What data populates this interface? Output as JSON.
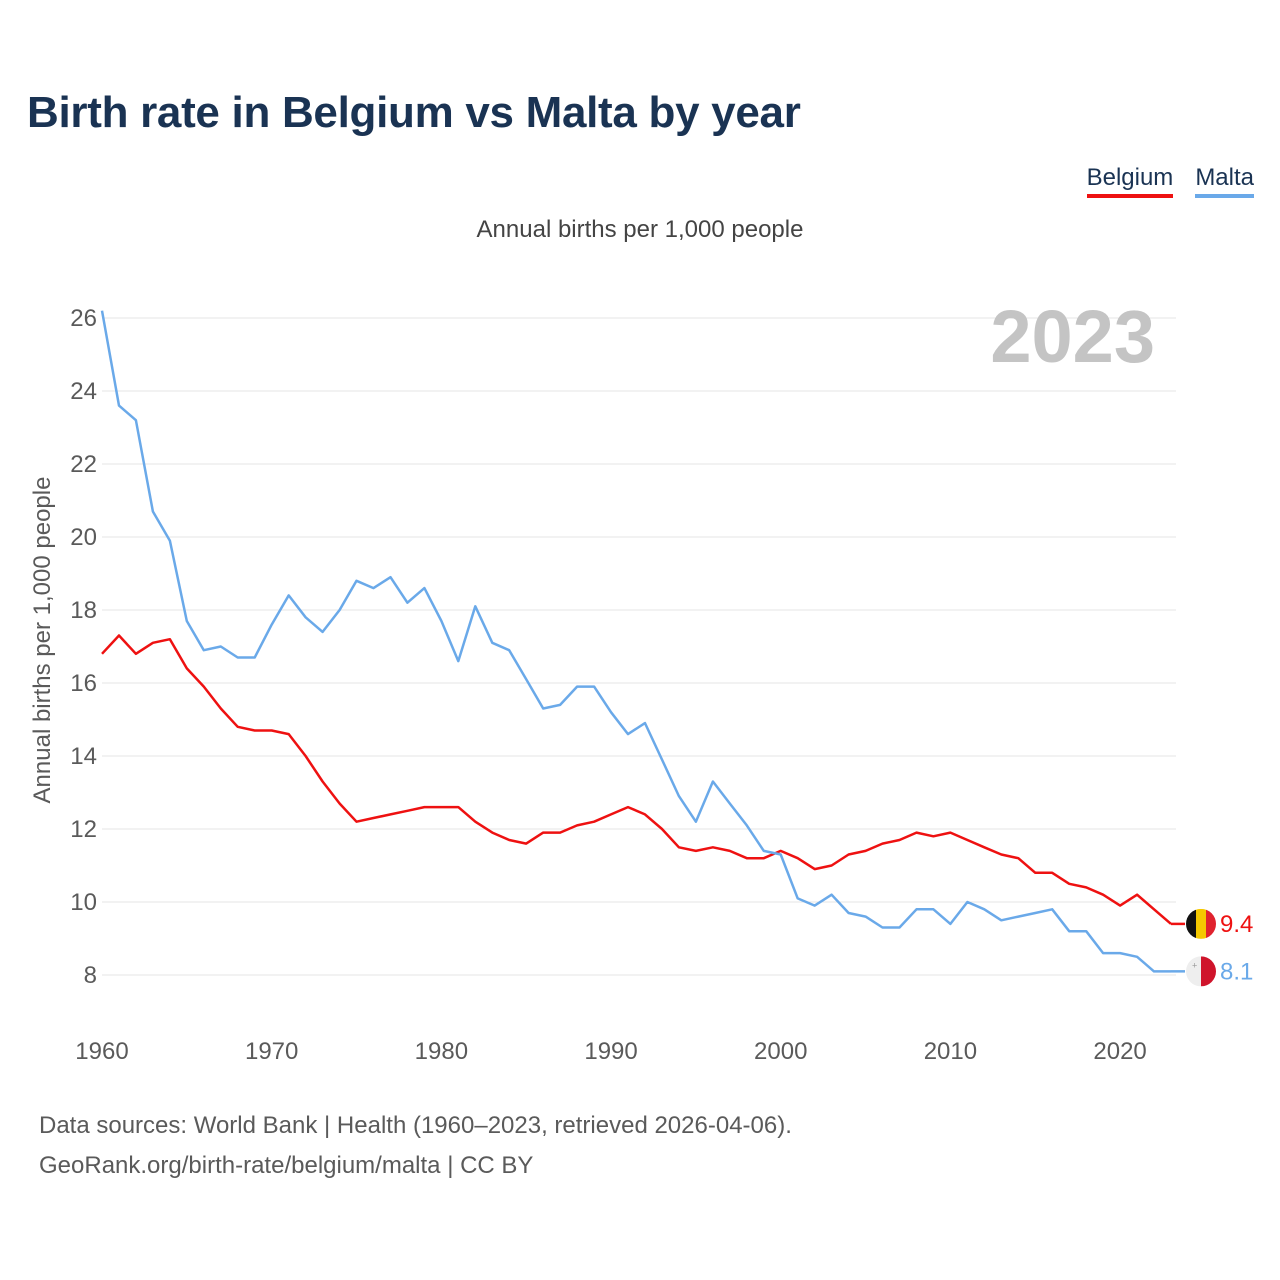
{
  "title": "Birth rate in Belgium vs Malta by year",
  "subtitle": "Annual births per 1,000 people",
  "year_watermark": "2023",
  "legend": [
    {
      "name": "Belgium",
      "color": "#ee1111"
    },
    {
      "name": "Malta",
      "color": "#6aa9e9"
    }
  ],
  "source_lines": [
    "Data sources: World Bank | Health (1960–2023, retrieved 2026-04-06).",
    "GeoRank.org/birth-rate/belgium/malta | CC BY"
  ],
  "chart_data": {
    "type": "line",
    "title": "Birth rate in Belgium vs Malta by year",
    "xlabel": "",
    "ylabel": "Annual births per 1,000 people",
    "xlim": [
      1960,
      2023
    ],
    "ylim": [
      7,
      26.5
    ],
    "x_ticks": [
      1960,
      1970,
      1980,
      1990,
      2000,
      2010,
      2020
    ],
    "y_ticks": [
      8,
      10,
      12,
      14,
      16,
      18,
      20,
      22,
      24,
      26
    ],
    "grid": true,
    "legend_position": "top-right",
    "x": [
      1960,
      1961,
      1962,
      1963,
      1964,
      1965,
      1966,
      1967,
      1968,
      1969,
      1970,
      1971,
      1972,
      1973,
      1974,
      1975,
      1976,
      1977,
      1978,
      1979,
      1980,
      1981,
      1982,
      1983,
      1984,
      1985,
      1986,
      1987,
      1988,
      1989,
      1990,
      1991,
      1992,
      1993,
      1994,
      1995,
      1996,
      1997,
      1998,
      1999,
      2000,
      2001,
      2002,
      2003,
      2004,
      2005,
      2006,
      2007,
      2008,
      2009,
      2010,
      2011,
      2012,
      2013,
      2014,
      2015,
      2016,
      2017,
      2018,
      2019,
      2020,
      2021,
      2022,
      2023
    ],
    "series": [
      {
        "name": "Belgium",
        "color": "#ee1111",
        "end_label": "9.4",
        "values": [
          16.8,
          17.3,
          16.8,
          17.1,
          17.2,
          16.4,
          15.9,
          15.3,
          14.8,
          14.7,
          14.7,
          14.6,
          14.0,
          13.3,
          12.7,
          12.2,
          12.3,
          12.4,
          12.5,
          12.6,
          12.6,
          12.6,
          12.2,
          11.9,
          11.7,
          11.6,
          11.9,
          11.9,
          12.1,
          12.2,
          12.4,
          12.6,
          12.4,
          12.0,
          11.5,
          11.4,
          11.5,
          11.4,
          11.2,
          11.2,
          11.4,
          11.2,
          10.9,
          11.0,
          11.3,
          11.4,
          11.6,
          11.7,
          11.9,
          11.8,
          11.9,
          11.7,
          11.5,
          11.3,
          11.2,
          10.8,
          10.8,
          10.5,
          10.4,
          10.2,
          9.9,
          10.2,
          9.8,
          9.4
        ]
      },
      {
        "name": "Malta",
        "color": "#6aa9e9",
        "end_label": "8.1",
        "values": [
          26.2,
          23.6,
          23.2,
          20.7,
          19.9,
          17.7,
          16.9,
          17.0,
          16.7,
          16.7,
          17.6,
          18.4,
          17.8,
          17.4,
          18.0,
          18.8,
          18.6,
          18.9,
          18.2,
          18.6,
          17.7,
          16.6,
          18.1,
          17.1,
          16.9,
          16.1,
          15.3,
          15.4,
          15.9,
          15.9,
          15.2,
          14.6,
          14.9,
          13.9,
          12.9,
          12.2,
          13.3,
          12.7,
          12.1,
          11.4,
          11.3,
          10.1,
          9.9,
          10.2,
          9.7,
          9.6,
          9.3,
          9.3,
          9.8,
          9.8,
          9.4,
          10.0,
          9.8,
          9.5,
          9.6,
          9.7,
          9.8,
          9.2,
          9.2,
          8.6,
          8.6,
          8.5,
          8.1,
          8.1
        ]
      }
    ]
  }
}
